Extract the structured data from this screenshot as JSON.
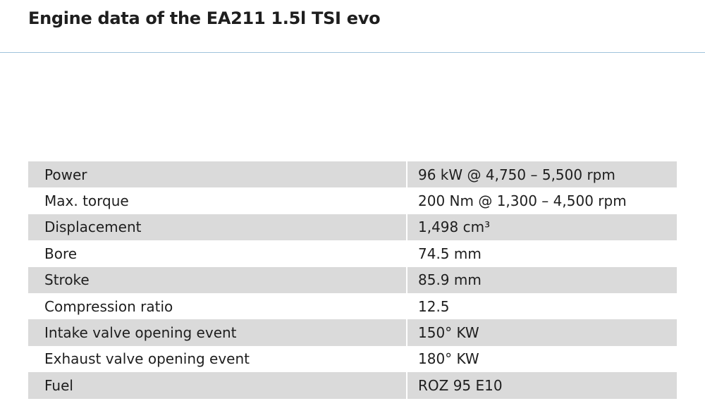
{
  "header": {
    "title": "Engine data of the EA211 1.5l TSI evo"
  },
  "table": {
    "rows": [
      [
        "Power",
        "96 kW @ 4,750 – 5,500 rpm"
      ],
      [
        "Max. torque",
        "200 Nm @ 1,300 – 4,500 rpm"
      ],
      [
        "Displacement",
        "1,498 cm³"
      ],
      [
        "Bore",
        "74.5 mm"
      ],
      [
        "Stroke",
        "85.9 mm"
      ],
      [
        "Compression ratio",
        "12.5"
      ],
      [
        "Intake valve opening event",
        "150° KW"
      ],
      [
        "Exhaust valve opening event",
        "180° KW"
      ],
      [
        "Fuel",
        "ROZ 95 E10"
      ]
    ]
  }
}
